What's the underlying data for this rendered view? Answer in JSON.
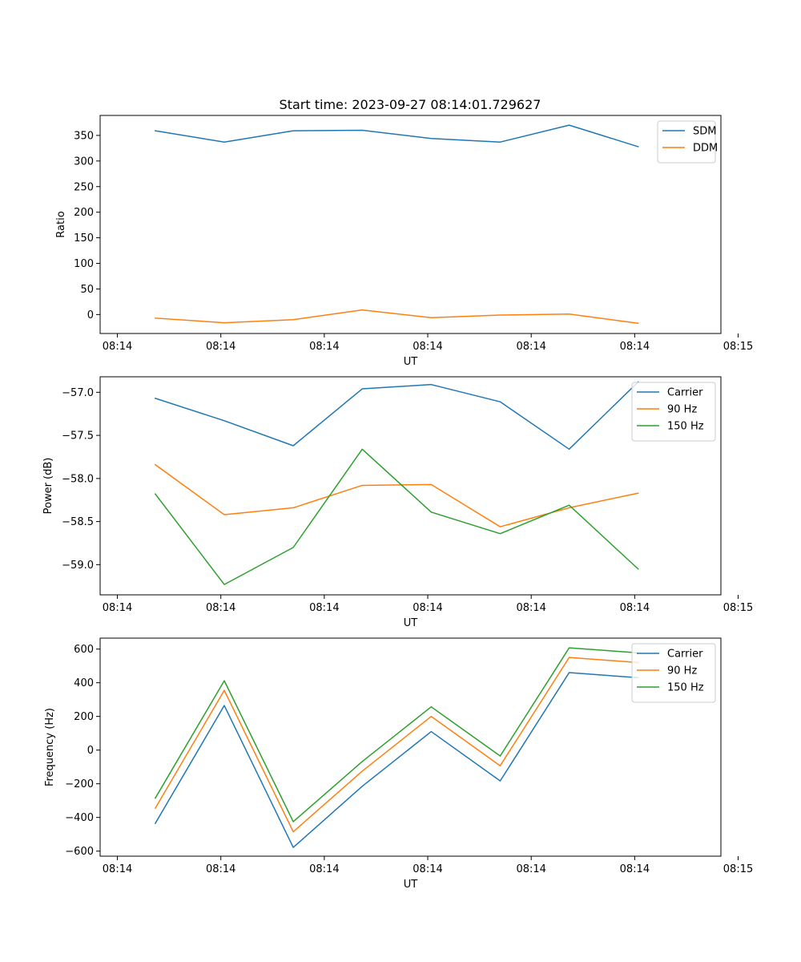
{
  "figure_title": "Start time: 2023-09-27 08:14:01.729627",
  "chart_data": [
    {
      "type": "line",
      "title": "Start time: 2023-09-27 08:14:01.729627",
      "xlabel": "UT",
      "ylabel": "Ratio",
      "x": [
        1,
        2,
        3,
        4,
        5,
        6,
        7,
        8
      ],
      "xlim": [
        0.2,
        9.2
      ],
      "x_ticks": [
        0.45,
        1.95,
        3.45,
        4.95,
        6.45,
        7.95,
        9.45
      ],
      "x_tick_labels": [
        "08:14",
        "08:14",
        "08:14",
        "08:14",
        "08:14",
        "08:14",
        "08:15"
      ],
      "ylim": [
        -37,
        389
      ],
      "y_ticks": [
        0,
        50,
        100,
        150,
        200,
        250,
        300,
        350
      ],
      "y_tick_labels": [
        "0",
        "50",
        "100",
        "150",
        "200",
        "250",
        "300",
        "350"
      ],
      "legend_position": "top-right",
      "grid": false,
      "series": [
        {
          "name": "SDM",
          "color": "#1f77b4",
          "values": [
            359,
            337,
            359,
            360,
            344,
            337,
            370,
            328
          ]
        },
        {
          "name": "DDM",
          "color": "#ff7f0e",
          "values": [
            -7,
            -16,
            -10,
            9,
            -6,
            -1,
            1,
            -17
          ]
        }
      ]
    },
    {
      "type": "line",
      "title": "",
      "xlabel": "UT",
      "ylabel": "Power (dB)",
      "x": [
        1,
        2,
        3,
        4,
        5,
        6,
        7,
        8
      ],
      "xlim": [
        0.2,
        9.2
      ],
      "x_ticks": [
        0.45,
        1.95,
        3.45,
        4.95,
        6.45,
        7.95,
        9.45
      ],
      "x_tick_labels": [
        "08:14",
        "08:14",
        "08:14",
        "08:14",
        "08:14",
        "08:14",
        "08:15"
      ],
      "ylim": [
        -59.35,
        -56.82
      ],
      "y_ticks": [
        -57.0,
        -57.5,
        -58.0,
        -58.5,
        -59.0
      ],
      "y_tick_labels": [
        "−57.0",
        "−57.5",
        "−58.0",
        "−58.5",
        "−59.0"
      ],
      "legend_position": "top-right",
      "grid": false,
      "series": [
        {
          "name": "Carrier",
          "color": "#1f77b4",
          "values": [
            -57.07,
            -57.33,
            -57.62,
            -56.96,
            -56.91,
            -57.11,
            -57.66,
            -56.88
          ]
        },
        {
          "name": "90 Hz",
          "color": "#ff7f0e",
          "values": [
            -57.84,
            -58.42,
            -58.34,
            -58.08,
            -58.07,
            -58.56,
            -58.34,
            -58.17
          ]
        },
        {
          "name": "150 Hz",
          "color": "#2ca02c",
          "values": [
            -58.18,
            -59.23,
            -58.8,
            -57.66,
            -58.39,
            -58.64,
            -58.31,
            -59.05
          ]
        }
      ]
    },
    {
      "type": "line",
      "title": "",
      "xlabel": "UT",
      "ylabel": "Frequency (Hz)",
      "x": [
        1,
        2,
        3,
        4,
        5,
        6,
        7,
        8
      ],
      "xlim": [
        0.2,
        9.2
      ],
      "x_ticks": [
        0.45,
        1.95,
        3.45,
        4.95,
        6.45,
        7.95,
        9.45
      ],
      "x_tick_labels": [
        "08:14",
        "08:14",
        "08:14",
        "08:14",
        "08:14",
        "08:14",
        "08:15"
      ],
      "ylim": [
        -630,
        665
      ],
      "y_ticks": [
        600,
        400,
        200,
        0,
        -200,
        -400,
        -600
      ],
      "y_tick_labels": [
        "600",
        "400",
        "200",
        "0",
        "−200",
        "−400",
        "−600"
      ],
      "legend_position": "top-right",
      "grid": false,
      "series": [
        {
          "name": "Carrier",
          "color": "#1f77b4",
          "values": [
            -435,
            265,
            -578,
            -215,
            110,
            -183,
            460,
            430
          ]
        },
        {
          "name": "90 Hz",
          "color": "#ff7f0e",
          "values": [
            -345,
            355,
            -485,
            -125,
            200,
            -93,
            550,
            520
          ]
        },
        {
          "name": "150 Hz",
          "color": "#2ca02c",
          "values": [
            -285,
            412,
            -425,
            -68,
            257,
            -35,
            607,
            578
          ]
        }
      ]
    }
  ]
}
